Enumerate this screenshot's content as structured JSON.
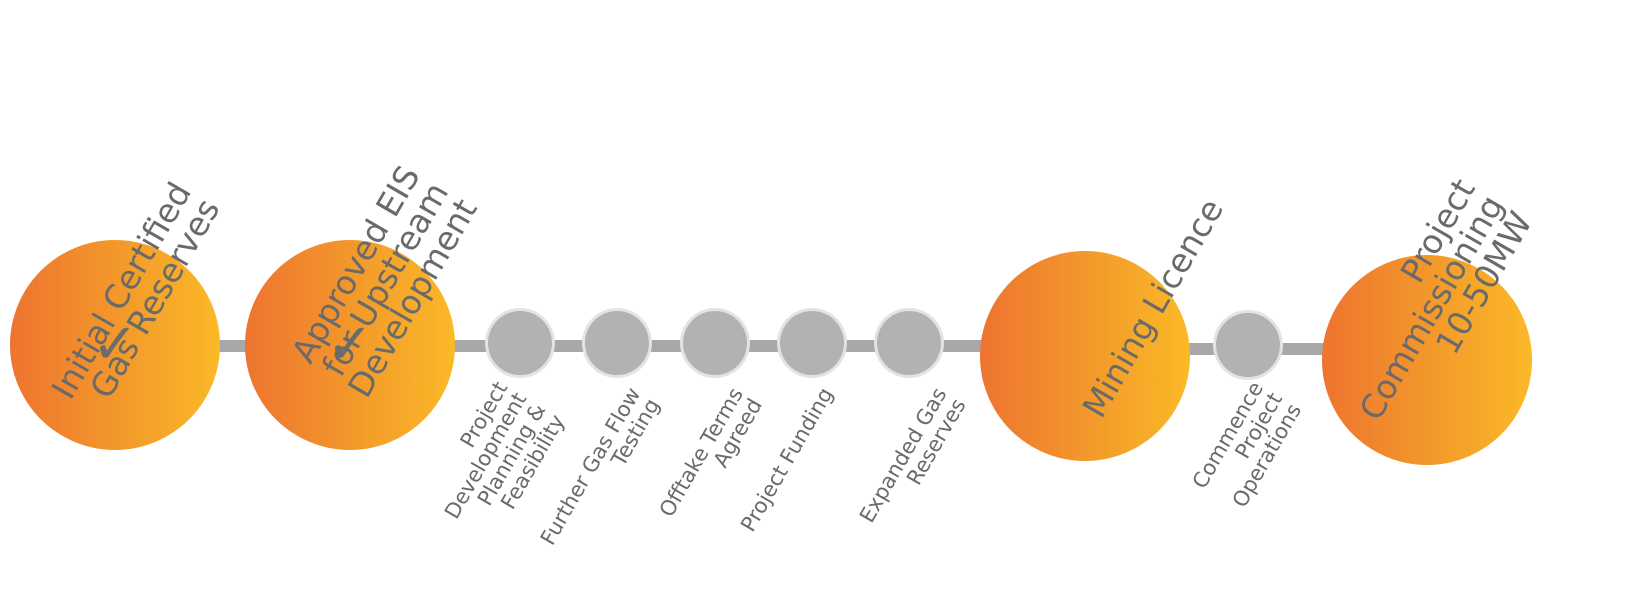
{
  "milestones": [
    {
      "label": "Initial Certified\nGas Reserves",
      "icon": "check-icon",
      "glyph": "✓",
      "status": "complete"
    },
    {
      "label": "Approved EIS\nfor Upstream\nDevelopment",
      "icon": "check-icon",
      "glyph": "✓",
      "status": "complete"
    },
    {
      "label": "Mining Licence",
      "status": "pending"
    },
    {
      "label": "Project\nCommissioning\n10-50MW",
      "status": "pending"
    }
  ],
  "steps": [
    {
      "label": "Project\nDevelopment\nPlanning &\nFeasibility"
    },
    {
      "label": "Further Gas Flow\nTesting"
    },
    {
      "label": "Offtake Terms\nAgreed"
    },
    {
      "label": "Project Funding"
    },
    {
      "label": "Expanded Gas\nReserves"
    },
    {
      "label": "Commence\nProject\nOperations"
    }
  ],
  "colors": {
    "milestone_gradient_start": "#ee7430",
    "milestone_gradient_end": "#fbb928",
    "step_fill": "#b2b2b2",
    "track": "#a8a8a8",
    "text": "#6a6a6a"
  }
}
